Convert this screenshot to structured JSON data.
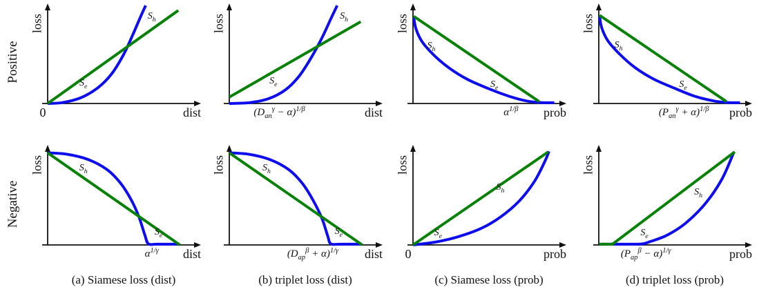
{
  "figure": {
    "row_labels": [
      "Positive",
      "Negative"
    ],
    "captions": [
      "(a) Siamese loss (dist)",
      "(b) triplet loss (dist)",
      "(c) Siamese loss (prob)",
      "(d) triplet loss (prob)"
    ],
    "colors": {
      "s_h": "#0d0dee",
      "s_e": "#078207",
      "axis": "#111111"
    }
  },
  "chart_data": [
    {
      "id": "positive-siamese-dist",
      "row": 0,
      "col": 0,
      "type": "line",
      "ylabel": "loss",
      "xlabel": "dist",
      "origin_label": "0",
      "x_tick": null,
      "series": [
        {
          "name": "S_{h}",
          "color": "s_h",
          "shape": "curve",
          "label_pos": [
            0.685,
            0.885
          ],
          "points": [
            [
              0,
              0
            ],
            [
              0.1,
              0.01
            ],
            [
              0.22,
              0.06
            ],
            [
              0.33,
              0.16
            ],
            [
              0.42,
              0.3
            ],
            [
              0.5,
              0.5
            ],
            [
              0.56,
              0.7
            ],
            [
              0.61,
              0.88
            ],
            [
              0.645,
              1.0
            ]
          ]
        },
        {
          "name": "S_{e}",
          "color": "s_e",
          "shape": "straight",
          "label_pos": [
            0.235,
            0.205
          ],
          "points": [
            [
              0,
              0
            ],
            [
              0.86,
              0.95
            ]
          ]
        }
      ]
    },
    {
      "id": "positive-triplet-dist",
      "row": 0,
      "col": 1,
      "type": "line",
      "ylabel": "loss",
      "xlabel": "dist",
      "origin_label": null,
      "x_tick": {
        "text": "(D_{an}^{γ} − α)^{1/β}",
        "x": 0.33
      },
      "series": [
        {
          "name": "S_{h}",
          "color": "s_h",
          "shape": "curve",
          "label_pos": [
            0.755,
            0.885
          ],
          "points": [
            [
              0,
              0
            ],
            [
              0.14,
              0.01
            ],
            [
              0.26,
              0.05
            ],
            [
              0.37,
              0.14
            ],
            [
              0.46,
              0.28
            ],
            [
              0.54,
              0.47
            ],
            [
              0.61,
              0.67
            ],
            [
              0.67,
              0.87
            ],
            [
              0.71,
              1.0
            ]
          ]
        },
        {
          "name": "S_{e}",
          "color": "s_e",
          "shape": "straight",
          "label_pos": [
            0.29,
            0.225
          ],
          "points": [
            [
              0,
              0.065
            ],
            [
              0.865,
              0.835
            ]
          ]
        }
      ]
    },
    {
      "id": "positive-siamese-prob",
      "row": 0,
      "col": 2,
      "type": "line",
      "ylabel": "loss",
      "xlabel": "prob",
      "origin_label": null,
      "x_tick": {
        "text": "α^{1/β}",
        "x": 0.645
      },
      "series": [
        {
          "name": "S_{h}",
          "color": "s_h",
          "shape": "curve",
          "label_pos": [
            0.12,
            0.585
          ],
          "points": [
            [
              0.005,
              0.88
            ],
            [
              0.02,
              0.76
            ],
            [
              0.06,
              0.63
            ],
            [
              0.14,
              0.49
            ],
            [
              0.24,
              0.36
            ],
            [
              0.36,
              0.245
            ],
            [
              0.5,
              0.15
            ],
            [
              0.63,
              0.075
            ],
            [
              0.75,
              0.025
            ],
            [
              0.84,
              0.01
            ],
            [
              0.93,
              0.008
            ]
          ]
        },
        {
          "name": "S_{e}",
          "color": "s_e",
          "shape": "straight",
          "label_pos": [
            0.535,
            0.19
          ],
          "points": [
            [
              0.005,
              0.89
            ],
            [
              0.83,
              0.02
            ]
          ]
        }
      ]
    },
    {
      "id": "positive-triplet-prob",
      "row": 0,
      "col": 3,
      "type": "line",
      "ylabel": "loss",
      "xlabel": "prob",
      "origin_label": null,
      "x_tick": {
        "text": "(P_{an}^{γ} + α)^{1/β}",
        "x": 0.56
      },
      "series": [
        {
          "name": "S_{h}",
          "color": "s_h",
          "shape": "curve",
          "label_pos": [
            0.13,
            0.59
          ],
          "points": [
            [
              0.005,
              0.89
            ],
            [
              0.02,
              0.77
            ],
            [
              0.06,
              0.64
            ],
            [
              0.14,
              0.5
            ],
            [
              0.24,
              0.365
            ],
            [
              0.36,
              0.25
            ],
            [
              0.5,
              0.155
            ],
            [
              0.63,
              0.075
            ],
            [
              0.76,
              0.025
            ],
            [
              0.85,
              0.01
            ],
            [
              0.93,
              0.008
            ]
          ]
        },
        {
          "name": "S_{e}",
          "color": "s_e",
          "shape": "straight",
          "label_pos": [
            0.555,
            0.19
          ],
          "points": [
            [
              0.005,
              0.9
            ],
            [
              0.84,
              0.02
            ]
          ]
        }
      ]
    },
    {
      "id": "negative-siamese-dist",
      "row": 1,
      "col": 0,
      "type": "line",
      "ylabel": "loss",
      "xlabel": "dist",
      "origin_label": null,
      "x_tick": {
        "text": "α^{1/γ}",
        "x": 0.685
      },
      "series": [
        {
          "name": "S_{h}",
          "color": "s_h",
          "shape": "curve",
          "label_pos": [
            0.235,
            0.78
          ],
          "points": [
            [
              0,
              0.94
            ],
            [
              0.13,
              0.925
            ],
            [
              0.27,
              0.87
            ],
            [
              0.39,
              0.77
            ],
            [
              0.48,
              0.63
            ],
            [
              0.55,
              0.46
            ],
            [
              0.6,
              0.29
            ],
            [
              0.64,
              0.1
            ],
            [
              0.663,
              0.012
            ],
            [
              0.72,
              0.008
            ],
            [
              0.86,
              0.008
            ]
          ]
        },
        {
          "name": "S_{e}",
          "color": "s_e",
          "shape": "straight",
          "label_pos": [
            0.73,
            0.13
          ],
          "points": [
            [
              0,
              0.94
            ],
            [
              0.87,
              0
            ]
          ]
        }
      ]
    },
    {
      "id": "negative-triplet-dist",
      "row": 1,
      "col": 1,
      "type": "line",
      "ylabel": "loss",
      "xlabel": "dist",
      "origin_label": null,
      "x_tick": {
        "text": "(D_{ap}^{β} + α)^{1/γ}",
        "x": 0.55
      },
      "series": [
        {
          "name": "S_{h}",
          "color": "s_h",
          "shape": "curve",
          "label_pos": [
            0.245,
            0.78
          ],
          "points": [
            [
              0,
              0.94
            ],
            [
              0.13,
              0.925
            ],
            [
              0.27,
              0.87
            ],
            [
              0.39,
              0.77
            ],
            [
              0.48,
              0.63
            ],
            [
              0.55,
              0.46
            ],
            [
              0.61,
              0.27
            ],
            [
              0.648,
              0.09
            ],
            [
              0.668,
              0.012
            ],
            [
              0.73,
              0.008
            ],
            [
              0.865,
              0.008
            ]
          ]
        },
        {
          "name": "S_{e}",
          "color": "s_e",
          "shape": "straight",
          "label_pos": [
            0.72,
            0.135
          ],
          "points": [
            [
              0,
              0.94
            ],
            [
              0.875,
              0
            ]
          ]
        }
      ]
    },
    {
      "id": "negative-siamese-prob",
      "row": 1,
      "col": 2,
      "type": "line",
      "ylabel": "loss",
      "xlabel": "prob",
      "origin_label": "0",
      "x_tick": null,
      "series": [
        {
          "name": "S_{h}",
          "color": "s_h",
          "shape": "curve",
          "label_pos": [
            0.575,
            0.585
          ],
          "points": [
            [
              0,
              0
            ],
            [
              0.15,
              0.03
            ],
            [
              0.3,
              0.085
            ],
            [
              0.45,
              0.17
            ],
            [
              0.58,
              0.29
            ],
            [
              0.7,
              0.45
            ],
            [
              0.8,
              0.65
            ],
            [
              0.87,
              0.86
            ],
            [
              0.895,
              0.955
            ]
          ]
        },
        {
          "name": "S_{e}",
          "color": "s_e",
          "shape": "straight",
          "label_pos": [
            0.165,
            0.12
          ],
          "points": [
            [
              0,
              0
            ],
            [
              0.89,
              0.95
            ]
          ]
        }
      ]
    },
    {
      "id": "negative-triplet-prob",
      "row": 1,
      "col": 3,
      "type": "line",
      "ylabel": "loss",
      "xlabel": "prob",
      "origin_label": null,
      "x_tick": {
        "text": "(P_{ap}^{β} − α)^{1/γ}",
        "x": 0.31
      },
      "series": [
        {
          "name": "S_{h}",
          "color": "s_h",
          "shape": "curve",
          "label_pos": [
            0.655,
            0.535
          ],
          "points": [
            [
              0.01,
              0.008
            ],
            [
              0.15,
              0.008
            ],
            [
              0.28,
              0.01
            ],
            [
              0.34,
              0.035
            ],
            [
              0.45,
              0.1
            ],
            [
              0.57,
              0.22
            ],
            [
              0.7,
              0.42
            ],
            [
              0.81,
              0.67
            ],
            [
              0.89,
              0.95
            ]
          ]
        },
        {
          "name": "S_{e}",
          "color": "s_e",
          "shape": "straight",
          "label_pos": [
            0.3,
            0.12
          ],
          "points": [
            [
              0.005,
              0.008
            ],
            [
              0.09,
              0.008
            ],
            [
              0.895,
              0.95
            ]
          ]
        }
      ]
    }
  ]
}
